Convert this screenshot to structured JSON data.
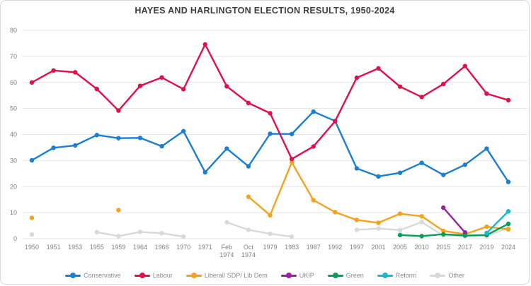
{
  "chart_data": {
    "type": "line",
    "title": "HAYES AND HARLINGTON ELECTION RESULTS, 1950-2024",
    "xlabel": "",
    "ylabel": "",
    "ylim": [
      0,
      80
    ],
    "ytick_step": 10,
    "grid": "horizontal-only",
    "legend_position": "bottom",
    "categories": [
      "1950",
      "1951",
      "1953",
      "1955",
      "1959",
      "1964",
      "1966",
      "1970",
      "1971",
      "Feb 1974",
      "Oct 1974",
      "1979",
      "1983",
      "1987",
      "1992",
      "1997",
      "2001",
      "2005",
      "2010",
      "2015",
      "2017",
      "2019",
      "2024"
    ],
    "series": [
      {
        "name": "Other",
        "color": "#d9d9d9",
        "values": [
          1.6,
          null,
          null,
          2.5,
          1.0,
          2.6,
          2.1,
          0.8,
          null,
          6.3,
          3.4,
          1.9,
          0.8,
          null,
          null,
          3.4,
          3.9,
          3.3,
          6.4,
          1.2,
          1.0,
          1.0,
          4.2
        ]
      },
      {
        "name": "Liberal/ SDP/ Lib Dem",
        "color": "#f6a21d",
        "values": [
          8.0,
          null,
          null,
          null,
          11.0,
          null,
          null,
          null,
          null,
          null,
          16.1,
          9.0,
          29.3,
          14.8,
          10.2,
          7.2,
          6.1,
          9.6,
          8.6,
          3.0,
          1.7,
          4.6,
          3.6
        ]
      },
      {
        "name": "UKIP",
        "color": "#93249c",
        "values": [
          null,
          null,
          null,
          null,
          null,
          null,
          null,
          null,
          null,
          null,
          null,
          null,
          null,
          null,
          null,
          null,
          null,
          null,
          null,
          11.9,
          2.4,
          null,
          null
        ]
      },
      {
        "name": "Green",
        "color": "#00a05a",
        "values": [
          null,
          null,
          null,
          null,
          null,
          null,
          null,
          null,
          null,
          null,
          null,
          null,
          null,
          null,
          null,
          null,
          null,
          1.4,
          1.0,
          1.7,
          1.2,
          1.4,
          5.7
        ]
      },
      {
        "name": "Reform",
        "color": "#17b9d4",
        "values": [
          null,
          null,
          null,
          null,
          null,
          null,
          null,
          null,
          null,
          null,
          null,
          null,
          null,
          null,
          null,
          null,
          null,
          null,
          null,
          null,
          null,
          2.2,
          10.5
        ]
      },
      {
        "name": "Conservative",
        "color": "#1b7ed0",
        "values": [
          30.1,
          34.9,
          35.8,
          39.8,
          38.6,
          38.7,
          35.5,
          41.3,
          25.5,
          34.6,
          27.8,
          40.3,
          40.2,
          48.8,
          45.2,
          27.0,
          23.9,
          25.3,
          29.1,
          24.5,
          28.4,
          34.6,
          21.8
        ]
      },
      {
        "name": "Labour",
        "color": "#e11048",
        "values": [
          60.0,
          64.6,
          63.9,
          57.5,
          49.2,
          58.7,
          61.9,
          57.4,
          74.6,
          58.5,
          52.1,
          48.2,
          30.6,
          35.4,
          45.1,
          61.8,
          65.4,
          58.4,
          54.4,
          59.4,
          66.3,
          55.7,
          53.2
        ]
      }
    ],
    "legend_order": [
      "Conservative",
      "Labour",
      "Liberal/ SDP/ Lib Dem",
      "UKIP",
      "Green",
      "Reform",
      "Other"
    ]
  }
}
